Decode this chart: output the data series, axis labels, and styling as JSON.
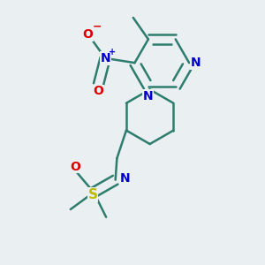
{
  "background_color": "#eaeff2",
  "bond_color": "#2d7d6e",
  "atom_colors": {
    "N": "#0000cc",
    "O": "#dd0000",
    "S": "#bbbb00",
    "C": "#2d7d6e"
  },
  "bond_width": 1.8,
  "figsize": [
    3.0,
    3.0
  ],
  "dpi": 100
}
